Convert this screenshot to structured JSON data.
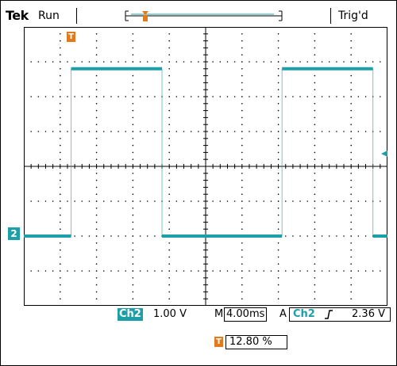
{
  "status": {
    "brand": "Tek",
    "run": "Run",
    "trigger_state": "Trig'd"
  },
  "readout": {
    "channel": "Ch2",
    "volts_per_div": "1.00 V",
    "timebase_prefix": "M",
    "timebase": "4.00ms",
    "trigger_mode": "A",
    "trigger_channel": "Ch2",
    "trigger_slope_icon": "rising-edge-icon",
    "trigger_level": "2.36 V",
    "trigger_position_marker": "T",
    "trigger_position": "12.80 %"
  },
  "markers": {
    "channel_ref": "2",
    "trigger_t": "T"
  },
  "colors": {
    "trace": "#1c9fa8",
    "trigger_marker": "#e27a1d",
    "grid": "#000000"
  },
  "chart_data": {
    "type": "line",
    "grid_divisions": {
      "x": 10,
      "y": 8
    },
    "x_unit": "ms",
    "y_unit": "V",
    "x_per_div": 4,
    "y_per_div": 1,
    "xlim": [
      0,
      40
    ],
    "ylim": [
      -2,
      6
    ],
    "series": [
      {
        "values": [
          {
            "x": 0,
            "y": 0
          },
          {
            "x": 5.2,
            "y": 0
          },
          {
            "x": 5.2,
            "y": 4.8
          },
          {
            "x": 15.2,
            "y": 4.8
          },
          {
            "x": 15.2,
            "y": 0
          },
          {
            "x": 28.4,
            "y": 0
          },
          {
            "x": 28.4,
            "y": 4.8
          },
          {
            "x": 38.4,
            "y": 4.8
          },
          {
            "x": 38.4,
            "y": 0
          },
          {
            "x": 40,
            "y": 0
          }
        ]
      }
    ]
  }
}
